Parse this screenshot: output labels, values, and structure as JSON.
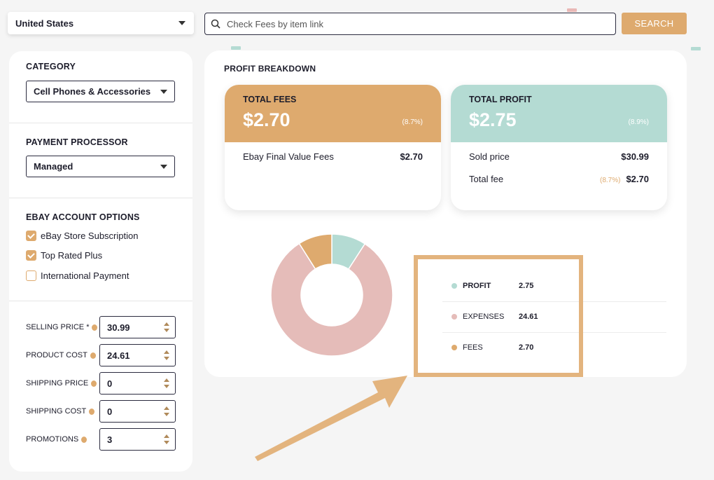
{
  "country": {
    "value": "United States"
  },
  "search": {
    "placeholder": "Check Fees by item link",
    "button_label": "SEARCH"
  },
  "sidebar": {
    "category": {
      "title": "CATEGORY",
      "value": "Cell Phones & Accessories"
    },
    "payment": {
      "title": "PAYMENT PROCESSOR",
      "value": "Managed"
    },
    "account": {
      "title": "EBAY ACCOUNT OPTIONS",
      "options": [
        {
          "label": "eBay Store Subscription",
          "checked": true
        },
        {
          "label": "Top Rated Plus",
          "checked": true
        },
        {
          "label": "International Payment",
          "checked": false
        }
      ]
    },
    "fields": [
      {
        "label": "SELLING PRICE *",
        "value": "30.99"
      },
      {
        "label": "PRODUCT COST",
        "value": "24.61"
      },
      {
        "label": "SHIPPING PRICE",
        "value": "0"
      },
      {
        "label": "SHIPPING COST",
        "value": "0"
      },
      {
        "label": "PROMOTIONS",
        "value": "3"
      }
    ]
  },
  "breakdown": {
    "title": "PROFIT BREAKDOWN",
    "fees_card": {
      "label": "TOTAL FEES",
      "amount": "$2.70",
      "pct": "(8.7%)",
      "lines": [
        {
          "name": "Ebay Final Value Fees",
          "value": "$2.70"
        }
      ]
    },
    "profit_card": {
      "label": "TOTAL PROFIT",
      "amount": "$2.75",
      "pct": "(8.9%)",
      "lines": [
        {
          "name": "Sold price",
          "value": "$30.99",
          "pct": ""
        },
        {
          "name": "Total fee",
          "value": "$2.70",
          "pct": "(8.7%)"
        }
      ]
    },
    "legend": [
      {
        "name": "PROFIT",
        "value": "2.75",
        "color": "#b4dbd3"
      },
      {
        "name": "EXPENSES",
        "value": "24.61",
        "color": "#e5bcb9"
      },
      {
        "name": "FEES",
        "value": "2.70",
        "color": "#deaa6e"
      }
    ]
  },
  "colors": {
    "accent": "#deaa6e",
    "profit": "#b4dbd3",
    "expenses": "#e5bcb9",
    "fees": "#deaa6e"
  }
}
